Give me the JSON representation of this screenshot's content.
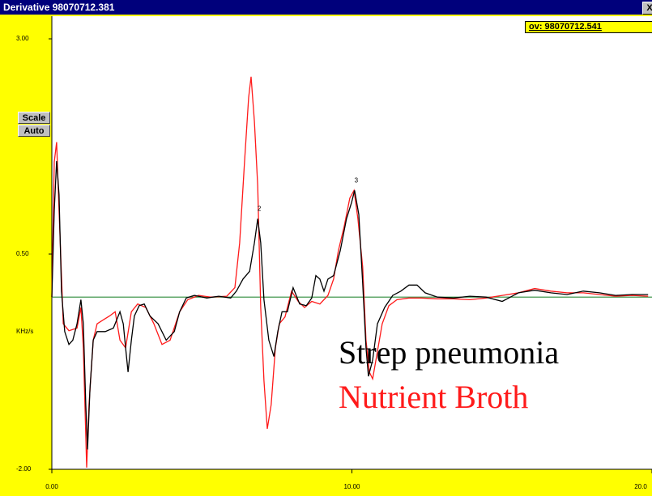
{
  "window": {
    "title": "Derivative  98070712.381",
    "close": "X"
  },
  "buttons": [
    "Scale",
    "Auto"
  ],
  "overlay_label": "ov: 98070712.541",
  "chart_data": {
    "type": "line",
    "ylabel": "KHz/s",
    "xlim": [
      0,
      20
    ],
    "ylim": [
      -2,
      3
    ],
    "xticks": [
      {
        "value": 0,
        "label": "0.00"
      },
      {
        "value": 10,
        "label": "10.00"
      },
      {
        "value": 20,
        "label": "20.0"
      }
    ],
    "yticks": [
      {
        "value": 3,
        "label": "3.00"
      },
      {
        "value": 0.5,
        "label": "0.50"
      },
      {
        "value": -2,
        "label": "-2.00"
      }
    ],
    "zero_line": {
      "value": 0,
      "color": "#2e8b3a"
    },
    "annotations": [
      {
        "text": "2",
        "x": 6.86,
        "y": 0.91
      },
      {
        "text": "3",
        "x": 10.09,
        "y": 1.24
      }
    ],
    "series": [
      {
        "name": "Strep pneumonia",
        "color": "#000000",
        "x": [
          0,
          0.08,
          0.16,
          0.24,
          0.32,
          0.43,
          0.57,
          0.7,
          0.84,
          0.97,
          1.05,
          1.13,
          1.19,
          1.27,
          1.38,
          1.51,
          1.78,
          2.05,
          2.27,
          2.38,
          2.46,
          2.54,
          2.65,
          2.75,
          2.91,
          3.08,
          3.27,
          3.54,
          3.81,
          4.08,
          4.26,
          4.48,
          4.75,
          5.16,
          5.56,
          5.96,
          6.15,
          6.37,
          6.59,
          6.75,
          6.86,
          6.96,
          7.07,
          7.23,
          7.4,
          7.53,
          7.67,
          7.85,
          8.04,
          8.26,
          8.48,
          8.66,
          8.8,
          8.93,
          9.07,
          9.2,
          9.39,
          9.61,
          9.82,
          9.99,
          10.09,
          10.23,
          10.36,
          10.47,
          10.55,
          10.69,
          10.85,
          11.09,
          11.36,
          11.63,
          11.9,
          12.17,
          12.44,
          12.85,
          13.39,
          13.93,
          14.47,
          15.01,
          15.55,
          16.09,
          16.63,
          17.17,
          17.71,
          18.25,
          18.79,
          19.33,
          19.87
        ],
        "values": [
          0,
          1.01,
          1.58,
          1.19,
          0.07,
          -0.4,
          -0.55,
          -0.5,
          -0.31,
          -0.03,
          -0.31,
          -1.25,
          -1.77,
          -1.06,
          -0.5,
          -0.4,
          -0.4,
          -0.36,
          -0.17,
          -0.31,
          -0.59,
          -0.87,
          -0.5,
          -0.22,
          -0.1,
          -0.08,
          -0.22,
          -0.31,
          -0.5,
          -0.4,
          -0.17,
          -0.01,
          0.02,
          -0.01,
          0.01,
          -0.01,
          0.07,
          0.21,
          0.3,
          0.63,
          0.91,
          0.63,
          -0.03,
          -0.5,
          -0.69,
          -0.4,
          -0.17,
          -0.17,
          0.11,
          -0.08,
          -0.1,
          -0.01,
          0.25,
          0.21,
          0.07,
          0.21,
          0.25,
          0.54,
          0.91,
          1.1,
          1.24,
          0.96,
          0.16,
          -0.59,
          -0.92,
          -0.73,
          -0.31,
          -0.12,
          0.02,
          0.07,
          0.14,
          0.14,
          0.05,
          0,
          -0.01,
          0.01,
          0,
          -0.05,
          0.05,
          0.08,
          0.05,
          0.03,
          0.07,
          0.05,
          0.02,
          0.03,
          0.03
        ]
      },
      {
        "name": "Nutrient Broth",
        "color": "#ff1a1a",
        "x": [
          0,
          0.08,
          0.16,
          0.24,
          0.38,
          0.57,
          0.84,
          0.97,
          1.05,
          1.16,
          1.24,
          1.38,
          1.51,
          1.73,
          1.92,
          2.11,
          2.27,
          2.46,
          2.65,
          2.86,
          3.13,
          3.4,
          3.67,
          3.94,
          4.26,
          4.53,
          4.89,
          5.29,
          5.83,
          6.1,
          6.26,
          6.42,
          6.56,
          6.64,
          6.75,
          6.86,
          6.96,
          7.07,
          7.18,
          7.31,
          7.45,
          7.58,
          7.77,
          7.99,
          8.21,
          8.42,
          8.66,
          8.93,
          9.2,
          9.39,
          9.55,
          9.74,
          9.93,
          10.07,
          10.2,
          10.36,
          10.47,
          10.58,
          10.69,
          10.82,
          11.01,
          11.23,
          11.5,
          11.9,
          12.31,
          12.85,
          13.39,
          13.93,
          14.47,
          15.01,
          15.55,
          16.09,
          16.63,
          17.17,
          17.71,
          18.25,
          18.79,
          19.33,
          19.87
        ],
        "values": [
          0,
          1.57,
          1.8,
          1.01,
          -0.31,
          -0.39,
          -0.36,
          -0.12,
          -0.59,
          -1.98,
          -1.25,
          -0.5,
          -0.31,
          -0.26,
          -0.22,
          -0.17,
          -0.5,
          -0.59,
          -0.17,
          -0.08,
          -0.12,
          -0.31,
          -0.55,
          -0.5,
          -0.17,
          -0.03,
          0.02,
          0,
          0.01,
          0.11,
          0.63,
          1.57,
          2.32,
          2.56,
          2.04,
          1.29,
          -0.12,
          -0.97,
          -1.53,
          -1.25,
          -0.59,
          -0.31,
          -0.23,
          0.07,
          -0.05,
          -0.12,
          -0.05,
          -0.08,
          0.02,
          0.21,
          0.54,
          0.82,
          1.15,
          1.24,
          0.91,
          0.35,
          -0.5,
          -0.87,
          -0.95,
          -0.69,
          -0.31,
          -0.1,
          -0.03,
          -0.01,
          -0.01,
          -0.02,
          -0.02,
          -0.03,
          -0.01,
          0.02,
          0.05,
          0.1,
          0.07,
          0.05,
          0.05,
          0.03,
          0.01,
          0.02,
          0.01
        ]
      }
    ]
  }
}
